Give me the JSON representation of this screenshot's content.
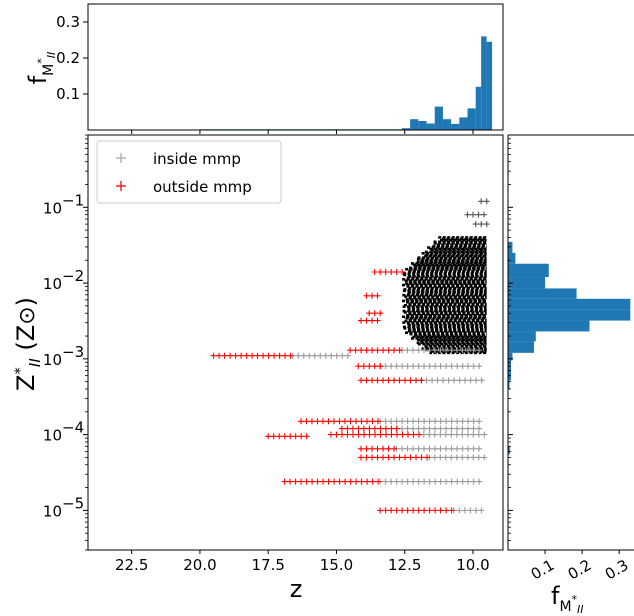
{
  "chart_data": [
    {
      "id": "main",
      "type": "scatter",
      "xlabel": "z",
      "ylabel": "Z*_II (Z⊙)",
      "xlim": [
        24.1,
        8.9
      ],
      "ylim": [
        3e-06,
        0.9
      ],
      "y_scale": "log",
      "x_reversed": true,
      "x_ticks": [
        22.5,
        20.0,
        17.5,
        15.0,
        12.5,
        10.0
      ],
      "x_tick_labels": [
        "22.5",
        "20.0",
        "17.5",
        "15.0",
        "12.5",
        "10.0"
      ],
      "y_ticks": [
        1e-05,
        0.0001,
        0.001,
        0.01,
        0.1
      ],
      "y_tick_labels": [
        "10",
        "10",
        "10",
        "10",
        "10"
      ],
      "y_tick_exponents": [
        "−5",
        "−4",
        "−3",
        "−2",
        "−1"
      ],
      "legend": {
        "location": "upper left",
        "entries": [
          {
            "label": "inside mmp",
            "color": "#aaaaaa",
            "marker": "+"
          },
          {
            "label": "outside mmp",
            "color": "#ff0000",
            "marker": "+"
          }
        ]
      },
      "series": [
        {
          "name": "outside mmp",
          "color": "#ff0000",
          "segments": [
            {
              "y": 0.014,
              "x_from": 13.6,
              "x_to": 12.6
            },
            {
              "y": 0.0068,
              "x_from": 13.9,
              "x_to": 13.4
            },
            {
              "y": 0.004,
              "x_from": 13.8,
              "x_to": 13.4
            },
            {
              "y": 0.0032,
              "x_from": 14.1,
              "x_to": 13.4
            },
            {
              "y": 0.0013,
              "x_from": 14.5,
              "x_to": 12.6
            },
            {
              "y": 0.0011,
              "x_from": 19.5,
              "x_to": 16.6
            },
            {
              "y": 0.0008,
              "x_from": 14.2,
              "x_to": 13.4
            },
            {
              "y": 0.00052,
              "x_from": 14.1,
              "x_to": 11.9
            },
            {
              "y": 0.00015,
              "x_from": 16.3,
              "x_to": 13.4
            },
            {
              "y": 0.00012,
              "x_from": 14.8,
              "x_to": 12.8
            },
            {
              "y": 0.0001,
              "x_from": 15.2,
              "x_to": 11.8
            },
            {
              "y": 9.5e-05,
              "x_from": 17.5,
              "x_to": 16.1
            },
            {
              "y": 6.5e-05,
              "x_from": 14.1,
              "x_to": 12.8
            },
            {
              "y": 5e-05,
              "x_from": 14.1,
              "x_to": 11.6
            },
            {
              "y": 2.4e-05,
              "x_from": 16.9,
              "x_to": 13.4
            },
            {
              "y": 1e-05,
              "x_from": 13.4,
              "x_to": 10.7
            }
          ]
        },
        {
          "name": "inside mmp",
          "color": "#aaaaaa",
          "segments": [
            {
              "y": 0.0011,
              "x_from": 16.6,
              "x_to": 14.6
            },
            {
              "y": 0.0013,
              "x_from": 12.6,
              "x_to": 9.6
            },
            {
              "y": 0.00052,
              "x_from": 11.9,
              "x_to": 9.6
            },
            {
              "y": 0.0008,
              "x_from": 13.4,
              "x_to": 9.6
            },
            {
              "y": 0.00015,
              "x_from": 13.4,
              "x_to": 9.6
            },
            {
              "y": 0.00012,
              "x_from": 12.8,
              "x_to": 9.6
            },
            {
              "y": 0.0001,
              "x_from": 11.8,
              "x_to": 9.6
            },
            {
              "y": 6.5e-05,
              "x_from": 12.8,
              "x_to": 9.6
            },
            {
              "y": 5e-05,
              "x_from": 11.6,
              "x_to": 9.6
            },
            {
              "y": 2.4e-05,
              "x_from": 13.4,
              "x_to": 9.6
            },
            {
              "y": 1e-05,
              "x_from": 10.7,
              "x_to": 9.6
            },
            {
              "y": 0.12,
              "x_from": 9.7,
              "x_to": 9.5
            },
            {
              "y": 0.08,
              "x_from": 10.2,
              "x_to": 9.5
            },
            {
              "y": 0.06,
              "x_from": 9.9,
              "x_to": 9.5
            }
          ],
          "dense_region": {
            "x_from": 12.6,
            "x_to": 9.5,
            "y_from": 0.0012,
            "y_to": 0.04
          }
        }
      ]
    },
    {
      "id": "top-histogram",
      "type": "bar",
      "ylabel": "f_M*_II",
      "xlim": [
        24.1,
        8.9
      ],
      "ylim": [
        0,
        0.35
      ],
      "y_ticks": [
        0.1,
        0.2,
        0.3
      ],
      "y_tick_labels": [
        "0.1",
        "0.2",
        "0.3"
      ],
      "color": "#1f77b4",
      "bins": [
        {
          "x_from": 20.0,
          "x_to": 12.6,
          "value": 0.002
        },
        {
          "x_from": 12.6,
          "x_to": 12.3,
          "value": 0.005
        },
        {
          "x_from": 12.3,
          "x_to": 12.0,
          "value": 0.03
        },
        {
          "x_from": 12.0,
          "x_to": 11.7,
          "value": 0.025
        },
        {
          "x_from": 11.7,
          "x_to": 11.4,
          "value": 0.018
        },
        {
          "x_from": 11.4,
          "x_to": 11.1,
          "value": 0.065
        },
        {
          "x_from": 11.1,
          "x_to": 10.8,
          "value": 0.03
        },
        {
          "x_from": 10.8,
          "x_to": 10.5,
          "value": 0.017
        },
        {
          "x_from": 10.5,
          "x_to": 10.2,
          "value": 0.035
        },
        {
          "x_from": 10.2,
          "x_to": 9.9,
          "value": 0.06
        },
        {
          "x_from": 9.9,
          "x_to": 9.7,
          "value": 0.12
        },
        {
          "x_from": 9.7,
          "x_to": 9.5,
          "value": 0.26
        },
        {
          "x_from": 9.5,
          "x_to": 9.3,
          "value": 0.245
        }
      ]
    },
    {
      "id": "right-histogram",
      "type": "bar",
      "orientation": "horizontal",
      "xlabel": "f_M*_II",
      "xlim": [
        0,
        0.34
      ],
      "x_ticks": [
        0.1,
        0.2,
        0.3
      ],
      "x_tick_labels": [
        "0.1",
        "0.2",
        "0.3"
      ],
      "y_scale": "log",
      "ylim": [
        3e-06,
        0.9
      ],
      "color": "#1f77b4",
      "bins": [
        {
          "y_from": 0.025,
          "y_to": 0.035,
          "value": 0.012
        },
        {
          "y_from": 0.018,
          "y_to": 0.025,
          "value": 0.02
        },
        {
          "y_from": 0.012,
          "y_to": 0.018,
          "value": 0.11
        },
        {
          "y_from": 0.0085,
          "y_to": 0.012,
          "value": 0.1
        },
        {
          "y_from": 0.0062,
          "y_to": 0.0085,
          "value": 0.185
        },
        {
          "y_from": 0.0045,
          "y_to": 0.0062,
          "value": 0.33
        },
        {
          "y_from": 0.0032,
          "y_to": 0.0045,
          "value": 0.33
        },
        {
          "y_from": 0.0023,
          "y_to": 0.0032,
          "value": 0.22
        },
        {
          "y_from": 0.0017,
          "y_to": 0.0023,
          "value": 0.075
        },
        {
          "y_from": 0.0012,
          "y_to": 0.0017,
          "value": 0.07
        },
        {
          "y_from": 0.00095,
          "y_to": 0.0012,
          "value": 0.012
        },
        {
          "y_from": 0.0007,
          "y_to": 0.00095,
          "value": 0.008
        },
        {
          "y_from": 0.00052,
          "y_to": 0.0007,
          "value": 0.008
        },
        {
          "y_from": 0.0004,
          "y_to": 0.00052,
          "value": 0.004
        },
        {
          "y_from": 5.5e-05,
          "y_to": 7e-05,
          "value": 0.005
        }
      ]
    }
  ]
}
